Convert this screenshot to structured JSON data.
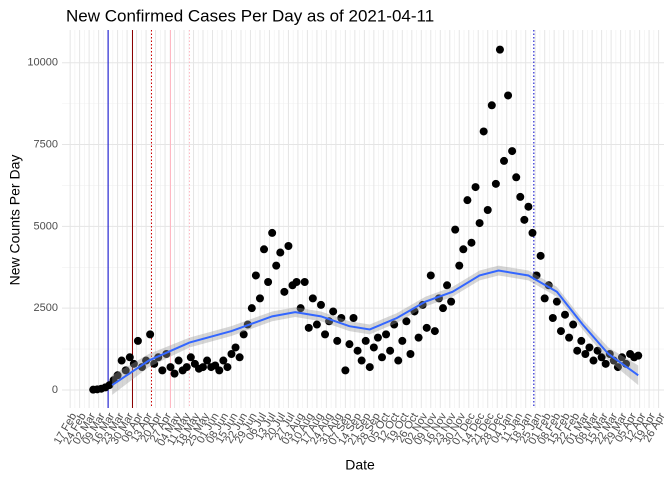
{
  "chart_data": {
    "type": "scatter",
    "title": "New Confirmed Cases Per Day as of 2021-04-11",
    "x_label": "Date",
    "y_label": "New Counts Per Day",
    "color": "#000000",
    "grid": true,
    "xlim": [
      "2020-02-11",
      "2021-04-30"
    ],
    "ylim": [
      -550,
      11000
    ],
    "yticks": [
      0,
      2500,
      5000,
      7500,
      10000
    ],
    "xticks": [
      {
        "value": "2020-02-17",
        "label": "17 Feb"
      },
      {
        "value": "2020-02-24",
        "label": "24 Feb"
      },
      {
        "value": "2020-03-02",
        "label": "02 Mar"
      },
      {
        "value": "2020-03-09",
        "label": "09 Mar"
      },
      {
        "value": "2020-03-16",
        "label": "16 Mar"
      },
      {
        "value": "2020-03-23",
        "label": "23 Mar"
      },
      {
        "value": "2020-03-30",
        "label": "30 Mar"
      },
      {
        "value": "2020-04-06",
        "label": "06 Apr"
      },
      {
        "value": "2020-04-13",
        "label": "13 Apr"
      },
      {
        "value": "2020-04-20",
        "label": "20 Apr"
      },
      {
        "value": "2020-04-27",
        "label": "27 Apr"
      },
      {
        "value": "2020-05-04",
        "label": "04 May"
      },
      {
        "value": "2020-05-11",
        "label": "11 May"
      },
      {
        "value": "2020-05-18",
        "label": "18 May"
      },
      {
        "value": "2020-05-25",
        "label": "25 May"
      },
      {
        "value": "2020-06-01",
        "label": "01 Jun"
      },
      {
        "value": "2020-06-08",
        "label": "08 Jun"
      },
      {
        "value": "2020-06-15",
        "label": "15 Jun"
      },
      {
        "value": "2020-06-22",
        "label": "22 Jun"
      },
      {
        "value": "2020-06-29",
        "label": "29 Jun"
      },
      {
        "value": "2020-07-06",
        "label": "06 Jul"
      },
      {
        "value": "2020-07-13",
        "label": "13 Jul"
      },
      {
        "value": "2020-07-20",
        "label": "20 Jul"
      },
      {
        "value": "2020-07-27",
        "label": "27 Jul"
      },
      {
        "value": "2020-08-03",
        "label": "03 Aug"
      },
      {
        "value": "2020-08-10",
        "label": "10 Aug"
      },
      {
        "value": "2020-08-17",
        "label": "17 Aug"
      },
      {
        "value": "2020-08-24",
        "label": "24 Aug"
      },
      {
        "value": "2020-08-31",
        "label": "31 Aug"
      },
      {
        "value": "2020-09-07",
        "label": "07 Sep"
      },
      {
        "value": "2020-09-14",
        "label": "14 Sep"
      },
      {
        "value": "2020-09-21",
        "label": "21 Sep"
      },
      {
        "value": "2020-09-28",
        "label": "28 Sep"
      },
      {
        "value": "2020-10-05",
        "label": "05 Oct"
      },
      {
        "value": "2020-10-12",
        "label": "12 Oct"
      },
      {
        "value": "2020-10-19",
        "label": "19 Oct"
      },
      {
        "value": "2020-10-26",
        "label": "26 Oct"
      },
      {
        "value": "2020-11-02",
        "label": "02 Nov"
      },
      {
        "value": "2020-11-09",
        "label": "09 Nov"
      },
      {
        "value": "2020-11-16",
        "label": "16 Nov"
      },
      {
        "value": "2020-11-23",
        "label": "23 Nov"
      },
      {
        "value": "2020-11-30",
        "label": "30 Nov"
      },
      {
        "value": "2020-12-07",
        "label": "07 Dec"
      },
      {
        "value": "2020-12-14",
        "label": "14 Dec"
      },
      {
        "value": "2020-12-21",
        "label": "21 Dec"
      },
      {
        "value": "2020-12-28",
        "label": "28 Dec"
      },
      {
        "value": "2021-01-04",
        "label": "04 Jan"
      },
      {
        "value": "2021-01-11",
        "label": "11 Jan"
      },
      {
        "value": "2021-01-18",
        "label": "18 Jan"
      },
      {
        "value": "2021-01-25",
        "label": "25 Jan"
      },
      {
        "value": "2021-02-01",
        "label": "01 Feb"
      },
      {
        "value": "2021-02-08",
        "label": "08 Feb"
      },
      {
        "value": "2021-02-15",
        "label": "15 Feb"
      },
      {
        "value": "2021-02-22",
        "label": "22 Feb"
      },
      {
        "value": "2021-03-01",
        "label": "01 Mar"
      },
      {
        "value": "2021-03-08",
        "label": "08 Mar"
      },
      {
        "value": "2021-03-15",
        "label": "15 Mar"
      },
      {
        "value": "2021-03-22",
        "label": "22 Mar"
      },
      {
        "value": "2021-03-29",
        "label": "29 Mar"
      },
      {
        "value": "2021-04-05",
        "label": "05 Apr"
      },
      {
        "value": "2021-04-12",
        "label": "12 Apr"
      },
      {
        "value": "2021-04-19",
        "label": "19 Apr"
      },
      {
        "value": "2021-04-26",
        "label": "26 Apr"
      }
    ],
    "x": [
      "2020-03-05",
      "2020-03-08",
      "2020-03-11",
      "2020-03-14",
      "2020-03-17",
      "2020-03-20",
      "2020-03-23",
      "2020-03-26",
      "2020-03-29",
      "2020-04-01",
      "2020-04-04",
      "2020-04-07",
      "2020-04-10",
      "2020-04-13",
      "2020-04-16",
      "2020-04-19",
      "2020-04-22",
      "2020-04-25",
      "2020-04-28",
      "2020-05-01",
      "2020-05-04",
      "2020-05-07",
      "2020-05-10",
      "2020-05-13",
      "2020-05-16",
      "2020-05-19",
      "2020-05-22",
      "2020-05-25",
      "2020-05-28",
      "2020-05-31",
      "2020-06-03",
      "2020-06-06",
      "2020-06-09",
      "2020-06-12",
      "2020-06-15",
      "2020-06-18",
      "2020-06-21",
      "2020-06-24",
      "2020-06-27",
      "2020-06-30",
      "2020-07-03",
      "2020-07-06",
      "2020-07-09",
      "2020-07-12",
      "2020-07-15",
      "2020-07-18",
      "2020-07-21",
      "2020-07-24",
      "2020-07-27",
      "2020-07-30",
      "2020-08-02",
      "2020-08-05",
      "2020-08-08",
      "2020-08-11",
      "2020-08-14",
      "2020-08-17",
      "2020-08-20",
      "2020-08-23",
      "2020-08-26",
      "2020-08-29",
      "2020-09-01",
      "2020-09-04",
      "2020-09-07",
      "2020-09-10",
      "2020-09-13",
      "2020-09-16",
      "2020-09-19",
      "2020-09-22",
      "2020-09-25",
      "2020-09-28",
      "2020-10-01",
      "2020-10-04",
      "2020-10-07",
      "2020-10-10",
      "2020-10-13",
      "2020-10-16",
      "2020-10-19",
      "2020-10-22",
      "2020-10-25",
      "2020-10-28",
      "2020-10-31",
      "2020-11-03",
      "2020-11-06",
      "2020-11-09",
      "2020-11-12",
      "2020-11-15",
      "2020-11-18",
      "2020-11-21",
      "2020-11-24",
      "2020-11-27",
      "2020-11-30",
      "2020-12-03",
      "2020-12-06",
      "2020-12-09",
      "2020-12-12",
      "2020-12-15",
      "2020-12-18",
      "2020-12-21",
      "2020-12-24",
      "2020-12-27",
      "2020-12-30",
      "2021-01-02",
      "2021-01-05",
      "2021-01-08",
      "2021-01-11",
      "2021-01-14",
      "2021-01-17",
      "2021-01-20",
      "2021-01-23",
      "2021-01-26",
      "2021-01-29",
      "2021-02-01",
      "2021-02-04",
      "2021-02-07",
      "2021-02-10",
      "2021-02-13",
      "2021-02-16",
      "2021-02-19",
      "2021-02-22",
      "2021-02-25",
      "2021-02-28",
      "2021-03-03",
      "2021-03-06",
      "2021-03-09",
      "2021-03-12",
      "2021-03-15",
      "2021-03-18",
      "2021-03-21",
      "2021-03-24",
      "2021-03-27",
      "2021-03-30",
      "2021-04-02",
      "2021-04-05",
      "2021-04-08",
      "2021-04-11"
    ],
    "values": [
      10,
      20,
      40,
      80,
      150,
      300,
      450,
      900,
      600,
      1000,
      800,
      1500,
      700,
      900,
      1700,
      800,
      1000,
      600,
      1100,
      700,
      500,
      900,
      600,
      700,
      1000,
      800,
      650,
      700,
      900,
      700,
      750,
      600,
      900,
      700,
      1100,
      1300,
      1000,
      1700,
      2000,
      2500,
      3500,
      2800,
      4300,
      3300,
      4800,
      3800,
      4200,
      3000,
      4400,
      3200,
      3300,
      2500,
      3300,
      1900,
      2800,
      2000,
      2600,
      1700,
      2100,
      2400,
      1500,
      2200,
      600,
      1400,
      2200,
      1200,
      900,
      1500,
      700,
      1300,
      1600,
      1000,
      1700,
      1200,
      2000,
      900,
      1500,
      2100,
      1100,
      2400,
      1600,
      2600,
      1900,
      3500,
      1800,
      2800,
      2500,
      3200,
      2700,
      4900,
      3800,
      4300,
      5800,
      4500,
      6200,
      5100,
      7900,
      5500,
      8700,
      6300,
      10400,
      7000,
      9000,
      7300,
      6500,
      5900,
      5200,
      5600,
      4800,
      3500,
      4100,
      2800,
      3200,
      2200,
      2700,
      1800,
      2300,
      1600,
      2000,
      1200,
      1500,
      1100,
      1300,
      900,
      1200,
      1000,
      800,
      1100,
      900,
      700,
      1000,
      800,
      1100,
      1000,
      1050
    ],
    "smooth": {
      "color": "#3366ff",
      "band_color": "#999999",
      "x": [
        "2020-03-19",
        "2020-04-15",
        "2020-05-15",
        "2020-06-15",
        "2020-07-15",
        "2020-08-01",
        "2020-08-20",
        "2020-09-10",
        "2020-09-25",
        "2020-10-15",
        "2020-11-05",
        "2020-11-25",
        "2020-12-15",
        "2020-12-29",
        "2021-01-20",
        "2021-02-10",
        "2021-03-01",
        "2021-03-20",
        "2021-04-11"
      ],
      "values": [
        150,
        900,
        1450,
        1800,
        2250,
        2380,
        2250,
        1950,
        1850,
        2200,
        2700,
        3000,
        3500,
        3650,
        3500,
        3000,
        2000,
        1100,
        450
      ],
      "lower": [
        -150,
        700,
        1300,
        1650,
        2100,
        2230,
        2100,
        1800,
        1700,
        2050,
        2550,
        2850,
        3350,
        3500,
        3350,
        2850,
        1850,
        900,
        150
      ],
      "upper": [
        450,
        1100,
        1600,
        1950,
        2400,
        2530,
        2400,
        2100,
        2000,
        2350,
        2850,
        3150,
        3650,
        3800,
        3650,
        3150,
        2150,
        1300,
        750
      ]
    },
    "vlines": [
      {
        "x": "2020-03-16",
        "color": "#0000cc",
        "style": "solid"
      },
      {
        "x": "2020-04-03",
        "color": "#8b0000",
        "style": "solid"
      },
      {
        "x": "2020-04-17",
        "color": "#cc0000",
        "style": "dotted"
      },
      {
        "x": "2020-05-01",
        "color": "#ffb6c1",
        "style": "solid"
      },
      {
        "x": "2020-05-15",
        "color": "#ffb6c1",
        "style": "dotted"
      },
      {
        "x": "2021-01-24",
        "color": "#0000cc",
        "style": "dotted"
      }
    ]
  }
}
